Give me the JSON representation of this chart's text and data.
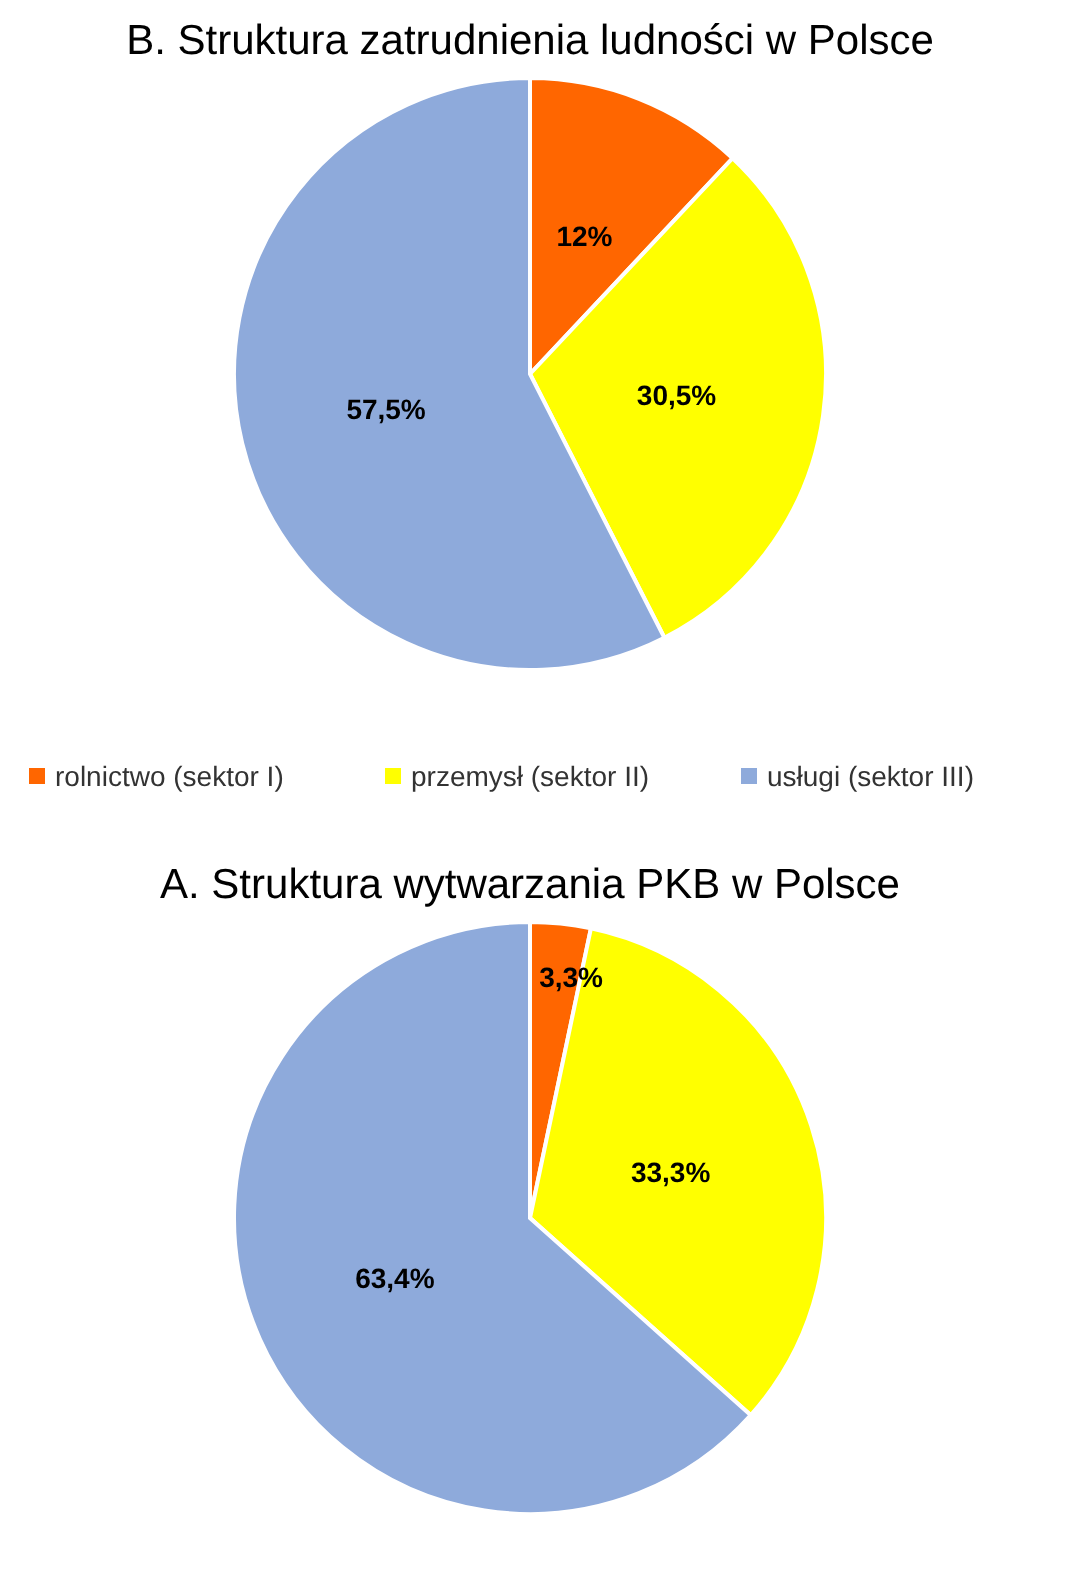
{
  "chart_data": [
    {
      "type": "pie",
      "title": "B. Struktura zatrudnienia ludności w Polsce",
      "categories": [
        "rolnictwo (sektor I)",
        "przemysł (sektor II)",
        "usługi (sektor III)"
      ],
      "values": [
        12,
        30.5,
        57.5
      ],
      "value_labels": [
        "12%",
        "30,5%",
        "57,5%"
      ],
      "colors": [
        "#ff6600",
        "#ffff00",
        "#8eaadb"
      ],
      "legend": "bottom"
    },
    {
      "type": "pie",
      "title": "A. Struktura wytwarzania PKB w Polsce",
      "categories": [
        null,
        null,
        null
      ],
      "values": [
        3.3,
        33.3,
        63.4
      ],
      "value_labels": [
        "3,3%",
        "33,3%",
        "63,4%"
      ],
      "colors": [
        "#ff6600",
        "#ffff00",
        "#8eaadb"
      ]
    }
  ]
}
